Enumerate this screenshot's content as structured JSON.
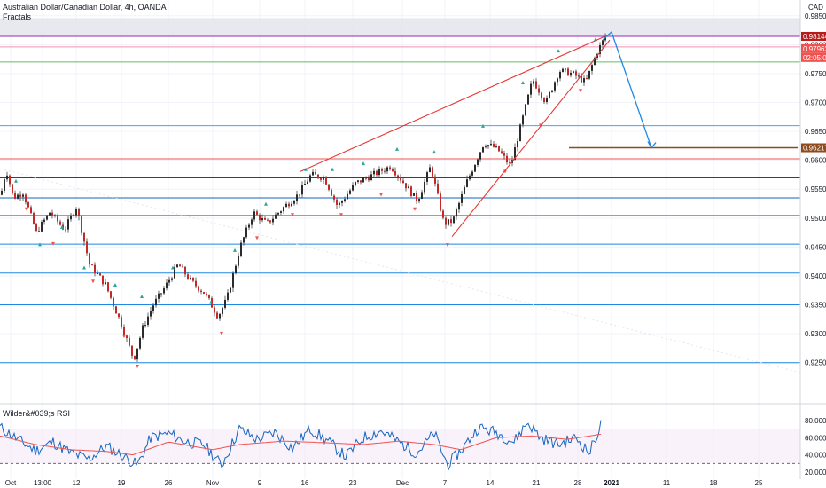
{
  "header": {
    "symbol": "Australian Dollar/Canadian Dollar, 4h, OANDA",
    "indicator": "Fractals",
    "currency": "CAD",
    "rsi_label": "Wilder&#039;s RSI"
  },
  "chart_data": [
    {
      "type": "candlestick",
      "x_ticks": [
        "Oct",
        "13:00",
        "12",
        "19",
        "26",
        "Nov",
        "9",
        "16",
        "23",
        "Dec",
        "7",
        "14",
        "21",
        "28",
        "2021",
        "11",
        "18",
        "25"
      ],
      "y_ticks": [
        "0.98500",
        "0.98000",
        "0.97500",
        "0.97000",
        "0.96500",
        "0.96000",
        "0.95500",
        "0.95000",
        "0.94500",
        "0.94000",
        "0.93500",
        "0.93000",
        "0.92500"
      ],
      "ylim": [
        0.9225,
        0.9865
      ],
      "price_path": [
        [
          0,
          0.954
        ],
        [
          6,
          0.9585
        ],
        [
          14,
          0.9535
        ],
        [
          25,
          0.9545
        ],
        [
          40,
          0.9475
        ],
        [
          55,
          0.951
        ],
        [
          72,
          0.948
        ],
        [
          85,
          0.952
        ],
        [
          100,
          0.942
        ],
        [
          118,
          0.9385
        ],
        [
          135,
          0.932
        ],
        [
          150,
          0.9255
        ],
        [
          160,
          0.931
        ],
        [
          172,
          0.935
        ],
        [
          185,
          0.938
        ],
        [
          200,
          0.942
        ],
        [
          215,
          0.939
        ],
        [
          230,
          0.937
        ],
        [
          245,
          0.933
        ],
        [
          255,
          0.936
        ],
        [
          270,
          0.945
        ],
        [
          285,
          0.951
        ],
        [
          300,
          0.949
        ],
        [
          320,
          0.952
        ],
        [
          335,
          0.954
        ],
        [
          350,
          0.9575
        ],
        [
          365,
          0.957
        ],
        [
          380,
          0.952
        ],
        [
          400,
          0.956
        ],
        [
          420,
          0.9575
        ],
        [
          440,
          0.959
        ],
        [
          455,
          0.956
        ],
        [
          470,
          0.953
        ],
        [
          485,
          0.959
        ],
        [
          500,
          0.949
        ],
        [
          510,
          0.9495
        ],
        [
          525,
          0.956
        ],
        [
          545,
          0.963
        ],
        [
          560,
          0.962
        ],
        [
          575,
          0.959
        ],
        [
          590,
          0.968
        ],
        [
          600,
          0.974
        ],
        [
          615,
          0.97
        ],
        [
          630,
          0.9755
        ],
        [
          645,
          0.975
        ],
        [
          660,
          0.9735
        ],
        [
          672,
          0.9785
        ],
        [
          682,
          0.9814
        ]
      ],
      "swing_high_markers": [
        [
          18,
          0.956
        ],
        [
          45,
          0.945
        ],
        [
          70,
          0.948
        ],
        [
          95,
          0.941
        ],
        [
          130,
          0.938
        ],
        [
          160,
          0.936
        ],
        [
          195,
          0.941
        ],
        [
          238,
          0.935
        ],
        [
          265,
          0.944
        ],
        [
          300,
          0.952
        ],
        [
          345,
          0.958
        ],
        [
          375,
          0.958
        ],
        [
          410,
          0.959
        ],
        [
          448,
          0.9615
        ],
        [
          490,
          0.961
        ],
        [
          545,
          0.9655
        ],
        [
          590,
          0.973
        ],
        [
          630,
          0.9785
        ],
        [
          672,
          0.9805
        ]
      ],
      "swing_low_markers": [
        [
          30,
          0.952
        ],
        [
          60,
          0.946
        ],
        [
          105,
          0.9395
        ],
        [
          140,
          0.93
        ],
        [
          155,
          0.9248
        ],
        [
          250,
          0.9305
        ],
        [
          290,
          0.947
        ],
        [
          330,
          0.951
        ],
        [
          385,
          0.951
        ],
        [
          430,
          0.9545
        ],
        [
          468,
          0.952
        ],
        [
          505,
          0.9458
        ],
        [
          570,
          0.9585
        ],
        [
          610,
          0.9665
        ],
        [
          655,
          0.9725
        ]
      ],
      "horizontal_levels": [
        {
          "y": 0.98144,
          "color": "#9c27b0"
        },
        {
          "y": 0.97962,
          "color": "#f48fb1"
        },
        {
          "y": 0.977,
          "color": "#66bb6a"
        },
        {
          "y": 0.966,
          "color": "#42a5f5"
        },
        {
          "y": 0.96025,
          "color": "#ef5350"
        },
        {
          "y": 0.957,
          "color": "#000000"
        },
        {
          "y": 0.9535,
          "color": "#1565c0"
        },
        {
          "y": 0.9505,
          "color": "#42a5f5"
        },
        {
          "y": 0.9455,
          "color": "#1e88e5"
        },
        {
          "y": 0.9405,
          "color": "#1e88e5"
        },
        {
          "y": 0.935,
          "color": "#1e88e5"
        },
        {
          "y": 0.925,
          "color": "#1e88e5"
        }
      ],
      "shaded_zone": {
        "from": 0.98144,
        "to": 0.9846,
        "color": "#e1e3ea"
      },
      "wedge": {
        "upper": [
          [
            338,
            0.958
          ],
          [
            688,
            0.9818
          ]
        ],
        "lower": [
          [
            510,
            0.9468
          ],
          [
            688,
            0.9808
          ]
        ],
        "color": "#e53935"
      },
      "forecast_arrow": {
        "points": [
          [
            690,
            0.9822
          ],
          [
            735,
            0.96217
          ]
        ],
        "color": "#1e88e5"
      },
      "target_line": {
        "from_x": 642,
        "to_x": 900,
        "y": 0.96217,
        "color": "#8d4b1e"
      },
      "price_tags": [
        {
          "label": "0.98144",
          "color": "#b71c1c"
        },
        {
          "label": "0.97962",
          "color": "#ef5350"
        },
        {
          "label": "02:05:02",
          "color": "#ef5350"
        },
        {
          "label": "0.96217",
          "color": "#8d4b1e"
        }
      ]
    },
    {
      "type": "line",
      "title": "Wilder&#039;s RSI",
      "y_ticks": [
        "80.00000",
        "60.00000",
        "40.00000",
        "20.00000"
      ],
      "ylim": [
        20,
        84
      ],
      "bands": [
        70,
        30
      ],
      "rsi_anchors": [
        [
          0,
          72
        ],
        [
          20,
          58
        ],
        [
          40,
          45
        ],
        [
          60,
          55
        ],
        [
          80,
          42
        ],
        [
          100,
          35
        ],
        [
          120,
          50
        ],
        [
          140,
          38
        ],
        [
          155,
          28
        ],
        [
          170,
          60
        ],
        [
          190,
          65
        ],
        [
          210,
          55
        ],
        [
          230,
          52
        ],
        [
          250,
          28
        ],
        [
          270,
          70
        ],
        [
          290,
          58
        ],
        [
          310,
          66
        ],
        [
          330,
          48
        ],
        [
          350,
          70
        ],
        [
          370,
          56
        ],
        [
          390,
          38
        ],
        [
          410,
          60
        ],
        [
          430,
          68
        ],
        [
          450,
          55
        ],
        [
          470,
          42
        ],
        [
          490,
          65
        ],
        [
          505,
          28
        ],
        [
          520,
          45
        ],
        [
          540,
          72
        ],
        [
          560,
          66
        ],
        [
          580,
          55
        ],
        [
          595,
          78
        ],
        [
          610,
          60
        ],
        [
          630,
          52
        ],
        [
          650,
          60
        ],
        [
          665,
          42
        ],
        [
          678,
          75
        ]
      ],
      "signal_anchors": [
        [
          0,
          62
        ],
        [
          40,
          52
        ],
        [
          80,
          46
        ],
        [
          120,
          44
        ],
        [
          150,
          40
        ],
        [
          190,
          55
        ],
        [
          240,
          46
        ],
        [
          270,
          52
        ],
        [
          320,
          56
        ],
        [
          370,
          54
        ],
        [
          410,
          52
        ],
        [
          450,
          56
        ],
        [
          490,
          52
        ],
        [
          520,
          46
        ],
        [
          560,
          60
        ],
        [
          600,
          62
        ],
        [
          640,
          58
        ],
        [
          678,
          64
        ]
      ]
    }
  ]
}
